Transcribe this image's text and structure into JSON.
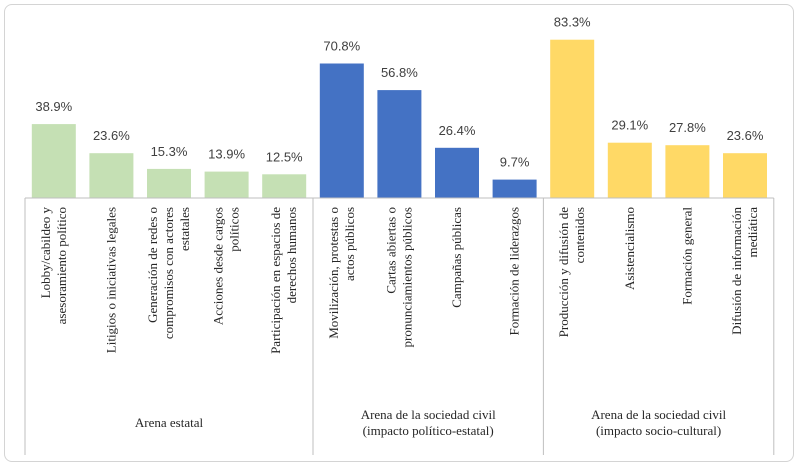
{
  "chart_data": {
    "type": "bar",
    "title": "",
    "xlabel": "",
    "ylabel": "",
    "ylim": [
      0,
      90
    ],
    "grid": false,
    "colors": {
      "Arena estatal": "#c5e0b4",
      "Arena de la sociedad civil (impacto político-estatal)": "#4472c4",
      "Arena de la sociedad civil (impacto socio-cultural)": "#ffd966"
    },
    "groups": [
      {
        "label_lines": [
          "Arena estatal"
        ],
        "color": "#c5e0b4",
        "bars": [
          {
            "label_lines": [
              "Lobby/cabildeo y",
              "asesoramiento político"
            ],
            "value": 38.9,
            "value_label": "38.9%"
          },
          {
            "label_lines": [
              "Litigios o iniciativas legales"
            ],
            "value": 23.6,
            "value_label": "23.6%"
          },
          {
            "label_lines": [
              "Generación de redes o",
              "compromisos con actores",
              "estatales"
            ],
            "value": 15.3,
            "value_label": "15.3%"
          },
          {
            "label_lines": [
              "Acciones desde cargos",
              "políticos"
            ],
            "value": 13.9,
            "value_label": "13.9%"
          },
          {
            "label_lines": [
              "Participación en espacios de",
              "derechos humanos"
            ],
            "value": 12.5,
            "value_label": "12.5%"
          }
        ]
      },
      {
        "label_lines": [
          "Arena de la sociedad civil",
          "(impacto político-estatal)"
        ],
        "color": "#4472c4",
        "bars": [
          {
            "label_lines": [
              "Movilización, protestas o",
              "actos públicos"
            ],
            "value": 70.8,
            "value_label": "70.8%"
          },
          {
            "label_lines": [
              "Cartas abiertas o",
              "pronunciamientos públicos"
            ],
            "value": 56.8,
            "value_label": "56.8%"
          },
          {
            "label_lines": [
              "Campañas públicas"
            ],
            "value": 26.4,
            "value_label": "26.4%"
          },
          {
            "label_lines": [
              "Formación de liderazgos"
            ],
            "value": 9.7,
            "value_label": "9.7%"
          }
        ]
      },
      {
        "label_lines": [
          "Arena de la sociedad civil",
          "(impacto socio-cultural)"
        ],
        "color": "#ffd966",
        "bars": [
          {
            "label_lines": [
              "Producción y difusión de",
              "contenidos"
            ],
            "value": 83.3,
            "value_label": "83.3%"
          },
          {
            "label_lines": [
              "Asistencialismo"
            ],
            "value": 29.1,
            "value_label": "29.1%"
          },
          {
            "label_lines": [
              "Formación general"
            ],
            "value": 27.8,
            "value_label": "27.8%"
          },
          {
            "label_lines": [
              "Difusión de información",
              "mediática"
            ],
            "value": 23.6,
            "value_label": "23.6%"
          }
        ]
      }
    ]
  }
}
